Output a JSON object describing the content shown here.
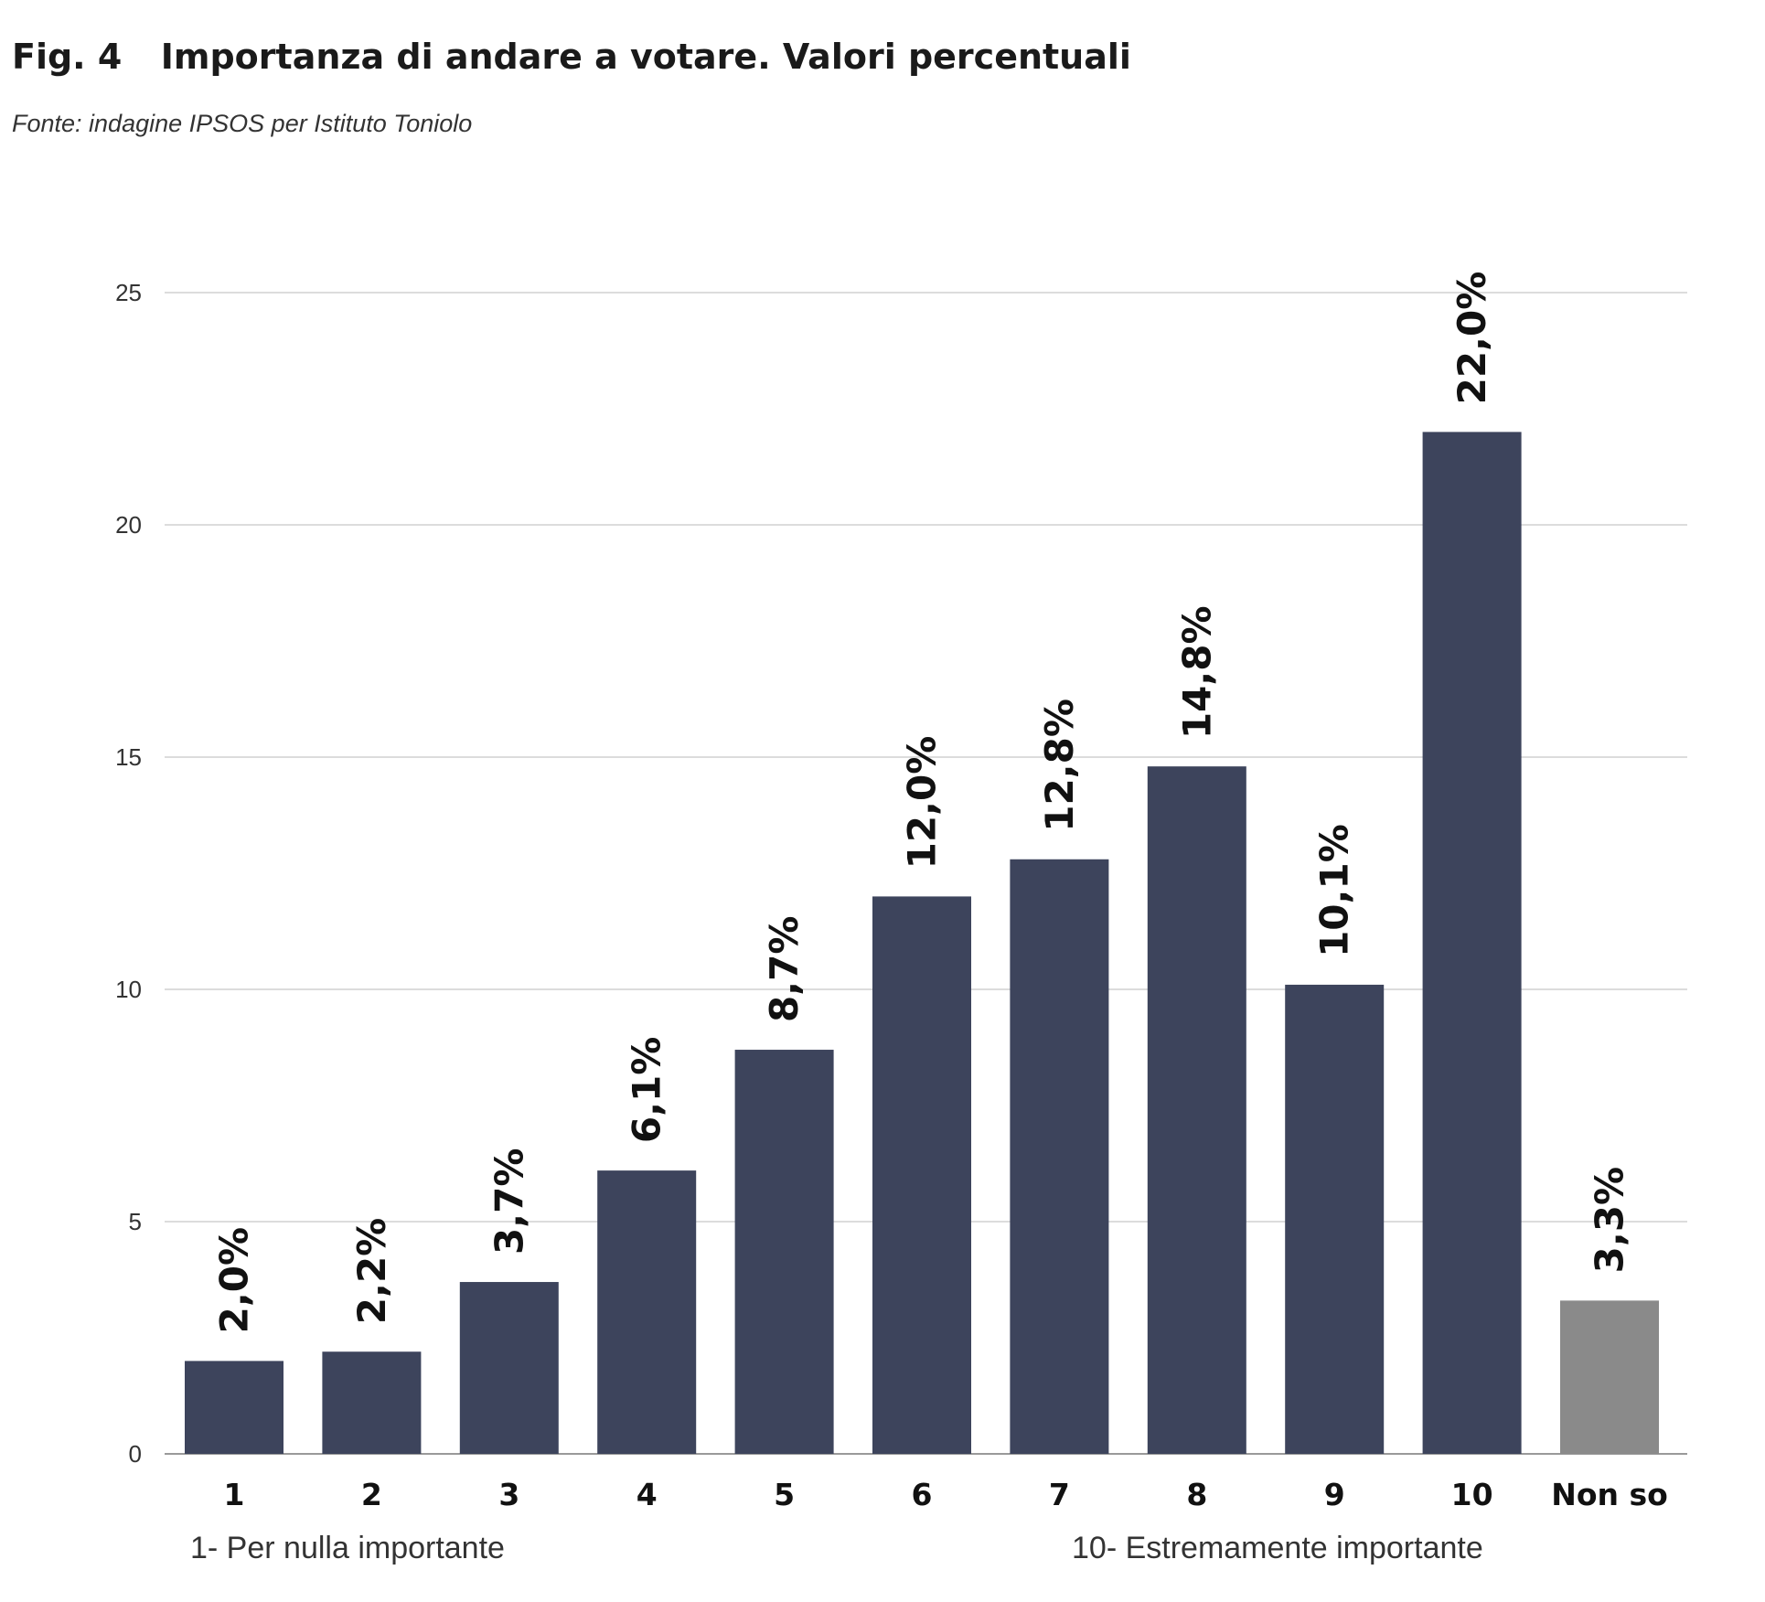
{
  "figure": {
    "label": "Fig. 4",
    "title": "Importanza di andare a votare. Valori percentuali",
    "source": "Fonte: indagine IPSOS per Istituto Toniolo"
  },
  "chart_data": {
    "type": "bar",
    "categories": [
      "1",
      "2",
      "3",
      "4",
      "5",
      "6",
      "7",
      "8",
      "9",
      "10",
      "Non so"
    ],
    "values": [
      2.0,
      2.2,
      3.7,
      6.1,
      8.7,
      12.0,
      12.8,
      14.8,
      10.1,
      22.0,
      3.3
    ],
    "data_labels": [
      "2,0%",
      "2,2%",
      "3,7%",
      "6,1%",
      "8,7%",
      "12,0%",
      "12,8%",
      "14,8%",
      "10,1%",
      "22,0%",
      "3,3%"
    ],
    "bar_colors": [
      "#3d445c",
      "#3d445c",
      "#3d445c",
      "#3d445c",
      "#3d445c",
      "#3d445c",
      "#3d445c",
      "#3d445c",
      "#3d445c",
      "#3d445c",
      "#8a8a8a"
    ],
    "yticks": [
      "0",
      "5",
      "10",
      "15",
      "20",
      "25"
    ],
    "ylim": [
      0,
      25
    ],
    "grid": true,
    "grid_color": "#c8c8c8",
    "annotations": {
      "low": "1- Per nulla importante",
      "high": "10- Estremamente importante"
    }
  }
}
